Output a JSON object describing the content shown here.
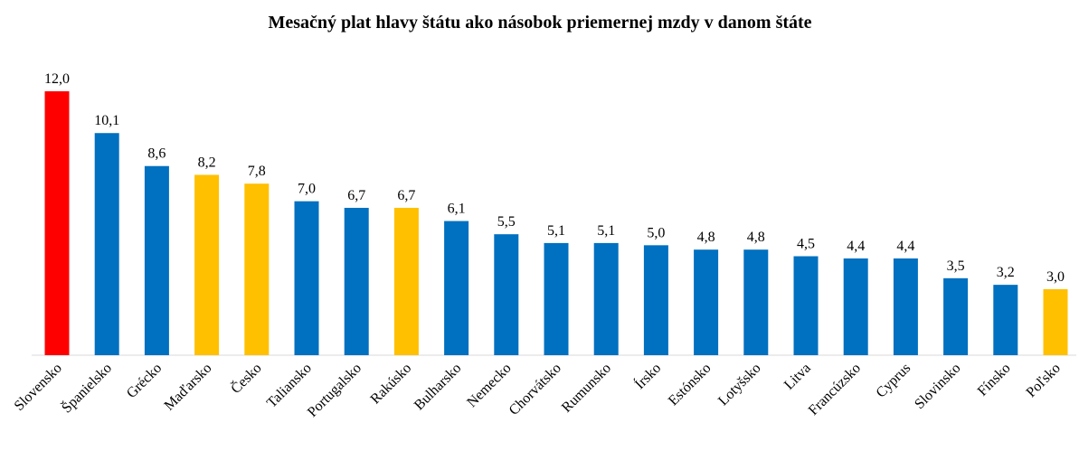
{
  "chart_data": {
    "type": "bar",
    "title": "Mesačný plat hlavy štátu ako násobok priemernej mzdy v danom štáte",
    "categories": [
      "Slovensko",
      "Španielsko",
      "Grécko",
      "Maďarsko",
      "Česko",
      "Taliansko",
      "Portugalsko",
      "Rakúsko",
      "Bulharsko",
      "Nemecko",
      "Chorvátsko",
      "Rumunsko",
      "Írsko",
      "Estónsko",
      "Lotyšsko",
      "Litva",
      "Francúzsko",
      "Cyprus",
      "Slovinsko",
      "Fínsko",
      "Poľsko"
    ],
    "values": [
      12.0,
      10.1,
      8.6,
      8.2,
      7.8,
      7.0,
      6.7,
      6.7,
      6.1,
      5.5,
      5.1,
      5.1,
      5.0,
      4.8,
      4.8,
      4.5,
      4.4,
      4.4,
      3.5,
      3.2,
      3.0
    ],
    "value_labels": [
      "12,0",
      "10,1",
      "8,6",
      "8,2",
      "7,8",
      "7,0",
      "6,7",
      "6,7",
      "6,1",
      "5,5",
      "5,1",
      "5,1",
      "5,0",
      "4,8",
      "4,8",
      "4,5",
      "4,4",
      "4,4",
      "3,5",
      "3,2",
      "3,0"
    ],
    "colors": [
      "#ff0000",
      "#0070c0",
      "#0070c0",
      "#ffc000",
      "#ffc000",
      "#0070c0",
      "#0070c0",
      "#ffc000",
      "#0070c0",
      "#0070c0",
      "#0070c0",
      "#0070c0",
      "#0070c0",
      "#0070c0",
      "#0070c0",
      "#0070c0",
      "#0070c0",
      "#0070c0",
      "#0070c0",
      "#0070c0",
      "#ffc000"
    ]
  }
}
